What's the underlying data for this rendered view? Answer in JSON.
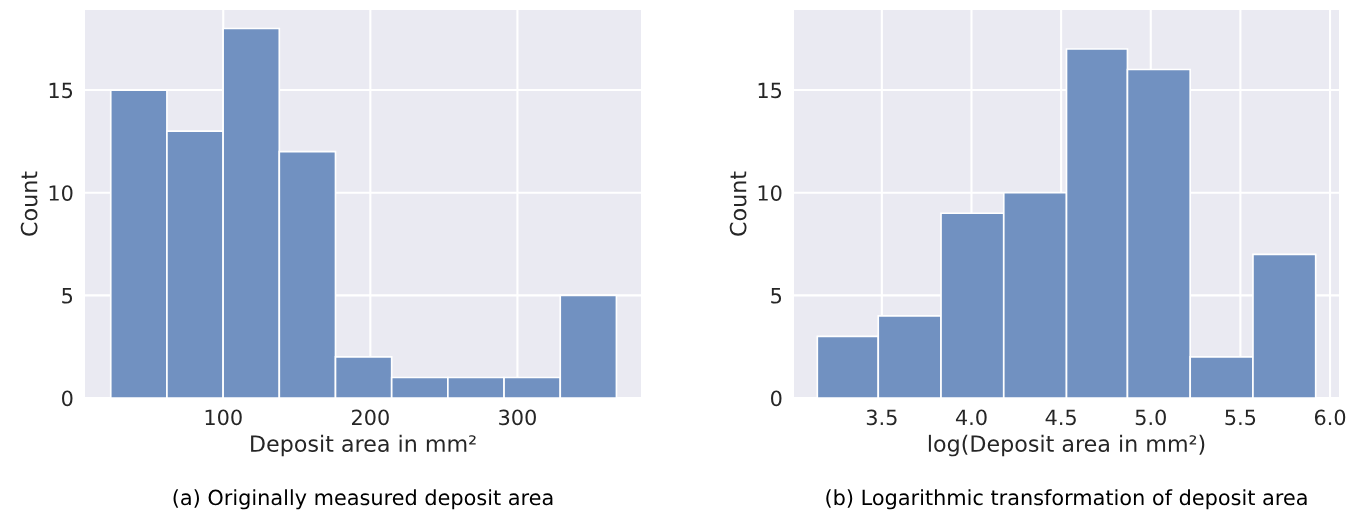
{
  "chart_data": [
    {
      "type": "histogram",
      "xlabel": "Deposit area in mm²",
      "ylabel": "Count",
      "bins": [
        23.5,
        61.7,
        99.9,
        138.1,
        176.3,
        214.5,
        252.7,
        290.9,
        329.1,
        367.3
      ],
      "values": [
        15,
        13,
        18,
        12,
        2,
        1,
        1,
        1,
        5
      ],
      "color": "#7191c1",
      "xlim": [
        6,
        384
      ],
      "xticks": [
        100,
        200,
        300
      ],
      "ylim": [
        0,
        18.9
      ],
      "yticks": [
        0,
        5,
        10,
        15
      ],
      "grid": true,
      "annotations": [
        "(a) Originally measured deposit area"
      ]
    },
    {
      "type": "histogram",
      "xlabel": "log(Deposit area in mm²)",
      "ylabel": "Count",
      "bins": [
        3.14,
        3.48,
        3.83,
        4.18,
        4.53,
        4.87,
        5.22,
        5.57,
        5.92
      ],
      "values": [
        3,
        4,
        9,
        10,
        17,
        16,
        2,
        7
      ],
      "color": "#7191c1",
      "xlim": [
        3.01,
        6.05
      ],
      "xticks": [
        3.5,
        {
          "value": 4,
          "label": "4.0"
        },
        4.5,
        {
          "value": 5,
          "label": "5.0"
        },
        5.5,
        {
          "value": 6,
          "label": "6.0"
        }
      ],
      "ylim": [
        0,
        18.9
      ],
      "yticks": [
        0,
        5,
        10,
        15
      ],
      "grid": true,
      "annotations": [
        "(b) Logarithmic transformation of deposit area"
      ]
    }
  ]
}
